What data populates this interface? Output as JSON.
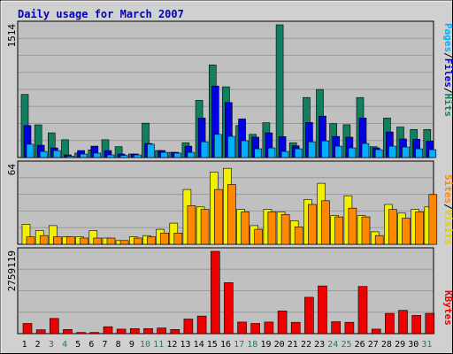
{
  "title": "Daily usage for March 2007",
  "colors": {
    "frame_bg": "#d0d0d0",
    "plot_bg": "#c0c0c0",
    "title": "#0000c0",
    "hits": "#00b0ff",
    "files": "#0000e0",
    "pages": "#108060",
    "visits": "#f0f000",
    "sites": "#ff8800",
    "kbytes": "#ee0000",
    "weekday_label": "#000000",
    "weekend_label": "#208050"
  },
  "legend": {
    "top": {
      "pages": "Pages",
      "files": "Files",
      "hits": "Hits",
      "sep": "/"
    },
    "middle": {
      "sites": "Sites",
      "visits": "Visits",
      "sep": "/"
    },
    "bottom": {
      "kbytes": "KBytes"
    }
  },
  "chart_data": [
    {
      "type": "bar",
      "title": "Daily usage for March 2007",
      "categories": [
        "1",
        "2",
        "3",
        "4",
        "5",
        "6",
        "7",
        "8",
        "9",
        "10",
        "11",
        "12",
        "13",
        "14",
        "15",
        "16",
        "17",
        "18",
        "19",
        "20",
        "21",
        "22",
        "23",
        "24",
        "25",
        "26",
        "27",
        "28",
        "29",
        "30",
        "31"
      ],
      "weekend_days": [
        "3",
        "4",
        "10",
        "11",
        "17",
        "18",
        "24",
        "25",
        "31"
      ],
      "ylim": [
        0,
        1514
      ],
      "ytick_label": "1514",
      "series": [
        {
          "name": "Pages",
          "values": [
            720,
            372,
            282,
            203,
            51,
            88,
            203,
            124,
            40,
            392,
            80,
            60,
            168,
            652,
            1056,
            806,
            364,
            264,
            397,
            1514,
            168,
            684,
            776,
            388,
            374,
            684,
            124,
            450,
            348,
            320,
            320
          ]
        },
        {
          "name": "Files",
          "values": [
            364,
            140,
            110,
            30,
            80,
            130,
            80,
            40,
            40,
            160,
            80,
            60,
            130,
            450,
            816,
            628,
            440,
            232,
            282,
            238,
            134,
            400,
            472,
            240,
            232,
            450,
            110,
            292,
            212,
            208,
            188
          ]
        },
        {
          "name": "Hits",
          "values": [
            152,
            70,
            80,
            15,
            40,
            50,
            30,
            25,
            30,
            152,
            60,
            50,
            60,
            180,
            264,
            242,
            192,
            100,
            110,
            70,
            100,
            180,
            190,
            130,
            110,
            160,
            90,
            130,
            120,
            100,
            90
          ]
        }
      ]
    },
    {
      "type": "bar",
      "categories": [
        "1",
        "2",
        "3",
        "4",
        "5",
        "6",
        "7",
        "8",
        "9",
        "10",
        "11",
        "12",
        "13",
        "14",
        "15",
        "16",
        "17",
        "18",
        "19",
        "20",
        "21",
        "22",
        "23",
        "24",
        "25",
        "26",
        "27",
        "28",
        "29",
        "30",
        "31"
      ],
      "ylim": [
        0,
        64
      ],
      "ytick_label": "64",
      "series": [
        {
          "name": "Visits",
          "values": [
            16,
            11,
            15,
            6,
            6,
            11,
            5,
            3,
            6,
            7,
            12,
            17,
            44,
            30,
            58,
            61,
            28,
            15,
            28,
            26,
            19,
            36,
            49,
            23,
            39,
            23,
            10,
            32,
            25,
            28,
            30
          ]
        },
        {
          "name": "Sites",
          "values": [
            6,
            7,
            6,
            6,
            5,
            5,
            5,
            3,
            5,
            6,
            9,
            9,
            31,
            28,
            44,
            48,
            26,
            12,
            26,
            24,
            14,
            32,
            35,
            22,
            29,
            22,
            7,
            28,
            21,
            26,
            40
          ]
        }
      ]
    },
    {
      "type": "bar",
      "categories": [
        "1",
        "2",
        "3",
        "4",
        "5",
        "6",
        "7",
        "8",
        "9",
        "10",
        "11",
        "12",
        "13",
        "14",
        "15",
        "16",
        "17",
        "18",
        "19",
        "20",
        "21",
        "22",
        "23",
        "24",
        "25",
        "26",
        "27",
        "28",
        "29",
        "30",
        "31"
      ],
      "ylim": [
        0,
        2759119
      ],
      "ytick_label": "2759119",
      "series": [
        {
          "name": "KBytes",
          "values": [
            340000,
            130000,
            510000,
            140000,
            40000,
            40000,
            230000,
            150000,
            170000,
            170000,
            190000,
            140000,
            490000,
            590000,
            2759119,
            1710000,
            390000,
            340000,
            390000,
            760000,
            380000,
            1220000,
            1600000,
            400000,
            380000,
            1580000,
            150000,
            680000,
            780000,
            610000,
            680000
          ]
        }
      ]
    }
  ]
}
